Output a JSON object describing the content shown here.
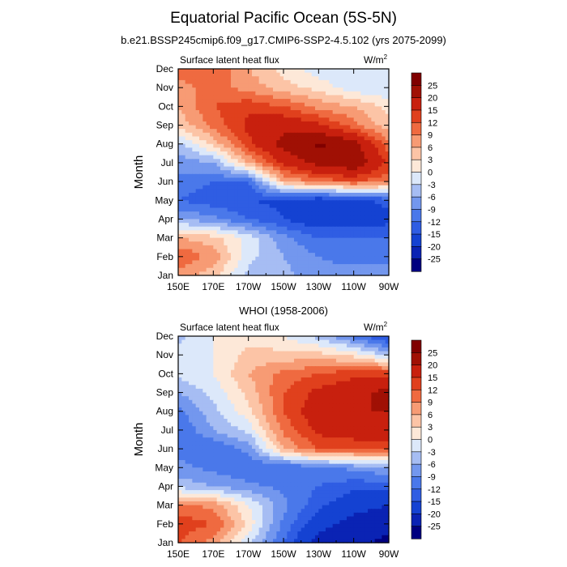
{
  "title": "Equatorial Pacific Ocean (5S-5N)",
  "subtitle": "b.e21.BSSP245cmip6.f09_g17.CMIP6-SSP2-4.5.102 (yrs 2075-2099)",
  "chart_data": [
    {
      "type": "heatmap",
      "title": "",
      "left_label": "Surface latent heat flux",
      "units_label": "W/m",
      "units_sup": "2",
      "xlabel": "",
      "ylabel": "Month",
      "x_ticks": [
        "150E",
        "170E",
        "170W",
        "150W",
        "130W",
        "110W",
        "90W"
      ],
      "y_ticks": [
        "Jan",
        "Feb",
        "Mar",
        "Apr",
        "May",
        "Jun",
        "Jul",
        "Aug",
        "Sep",
        "Oct",
        "Nov",
        "Dec"
      ],
      "x_range_lon": [
        150,
        270
      ],
      "levels": [
        -25,
        -20,
        -15,
        -12,
        -9,
        -6,
        -3,
        0,
        3,
        6,
        9,
        12,
        15,
        20,
        25
      ],
      "colorbar_labels": [
        "25",
        "20",
        "15",
        "12",
        "9",
        "6",
        "3",
        "0",
        "-3",
        "-6",
        "-9",
        "-12",
        "-15",
        "-20",
        "-25"
      ],
      "colors": [
        "#000080",
        "#0a23b4",
        "#1442d2",
        "#2f5de3",
        "#4a78ea",
        "#7397ee",
        "#a6bdf3",
        "#dce8fa",
        "#fde8d8",
        "#fcc4a6",
        "#f79b74",
        "#ef6a40",
        "#e0401d",
        "#c8200e",
        "#a01004",
        "#800000"
      ],
      "lon": [
        150,
        170,
        190,
        210,
        230,
        250,
        270
      ],
      "values": [
        [
          8,
          4,
          -4,
          -5,
          -8,
          -8,
          -8
        ],
        [
          12,
          8,
          -2,
          -6,
          -9,
          -10,
          -10
        ],
        [
          6,
          4,
          -1,
          -8,
          -12,
          -12,
          -12
        ],
        [
          -6,
          -8,
          -12,
          -15,
          -18,
          -18,
          -16
        ],
        [
          -12,
          -14,
          -15,
          -16,
          -18,
          -16,
          -14
        ],
        [
          -10,
          -12,
          -12,
          6,
          10,
          12,
          10
        ],
        [
          -8,
          -6,
          6,
          16,
          22,
          24,
          14
        ],
        [
          -4,
          4,
          14,
          22,
          26,
          22,
          10
        ],
        [
          4,
          10,
          16,
          18,
          16,
          10,
          4
        ],
        [
          6,
          12,
          14,
          12,
          8,
          6,
          2
        ],
        [
          8,
          10,
          8,
          4,
          2,
          -2,
          -3
        ],
        [
          10,
          12,
          6,
          2,
          -2,
          -3,
          -3
        ]
      ]
    },
    {
      "type": "heatmap",
      "title": "WHOI (1958-2006)",
      "left_label": "Surface latent heat flux",
      "units_label": "W/m",
      "units_sup": "2",
      "xlabel": "",
      "ylabel": "Month",
      "x_ticks": [
        "150E",
        "170E",
        "170W",
        "150W",
        "130W",
        "110W",
        "90W"
      ],
      "y_ticks": [
        "Jan",
        "Feb",
        "Mar",
        "Apr",
        "May",
        "Jun",
        "Jul",
        "Aug",
        "Sep",
        "Oct",
        "Nov",
        "Dec"
      ],
      "x_range_lon": [
        150,
        270
      ],
      "levels": [
        -25,
        -20,
        -15,
        -12,
        -9,
        -6,
        -3,
        0,
        3,
        6,
        9,
        12,
        15,
        20,
        25
      ],
      "colorbar_labels": [
        "25",
        "20",
        "15",
        "12",
        "9",
        "6",
        "3",
        "0",
        "-3",
        "-6",
        "-9",
        "-12",
        "-15",
        "-20",
        "-25"
      ],
      "colors": [
        "#000080",
        "#0a23b4",
        "#1442d2",
        "#2f5de3",
        "#4a78ea",
        "#7397ee",
        "#a6bdf3",
        "#dce8fa",
        "#fde8d8",
        "#fcc4a6",
        "#f79b74",
        "#ef6a40",
        "#e0401d",
        "#c8200e",
        "#a01004",
        "#800000"
      ],
      "lon": [
        150,
        170,
        190,
        210,
        230,
        250,
        270
      ],
      "values": [
        [
          12,
          8,
          -2,
          -12,
          -22,
          -24,
          -26
        ],
        [
          14,
          12,
          2,
          -10,
          -18,
          -22,
          -24
        ],
        [
          10,
          8,
          0,
          -8,
          -14,
          -18,
          -20
        ],
        [
          -4,
          -6,
          -8,
          -10,
          -12,
          -14,
          -14
        ],
        [
          -8,
          -10,
          -12,
          -12,
          -10,
          -8,
          -6
        ],
        [
          -10,
          -12,
          -8,
          6,
          12,
          12,
          12
        ],
        [
          -12,
          -6,
          -2,
          10,
          16,
          18,
          18
        ],
        [
          -10,
          -4,
          2,
          12,
          18,
          20,
          20
        ],
        [
          -6,
          -2,
          4,
          12,
          16,
          18,
          22
        ],
        [
          -2,
          0,
          6,
          10,
          12,
          14,
          14
        ],
        [
          -2,
          0,
          4,
          4,
          4,
          2,
          -4
        ],
        [
          -4,
          0,
          2,
          0,
          -4,
          -10,
          -16
        ]
      ]
    }
  ]
}
